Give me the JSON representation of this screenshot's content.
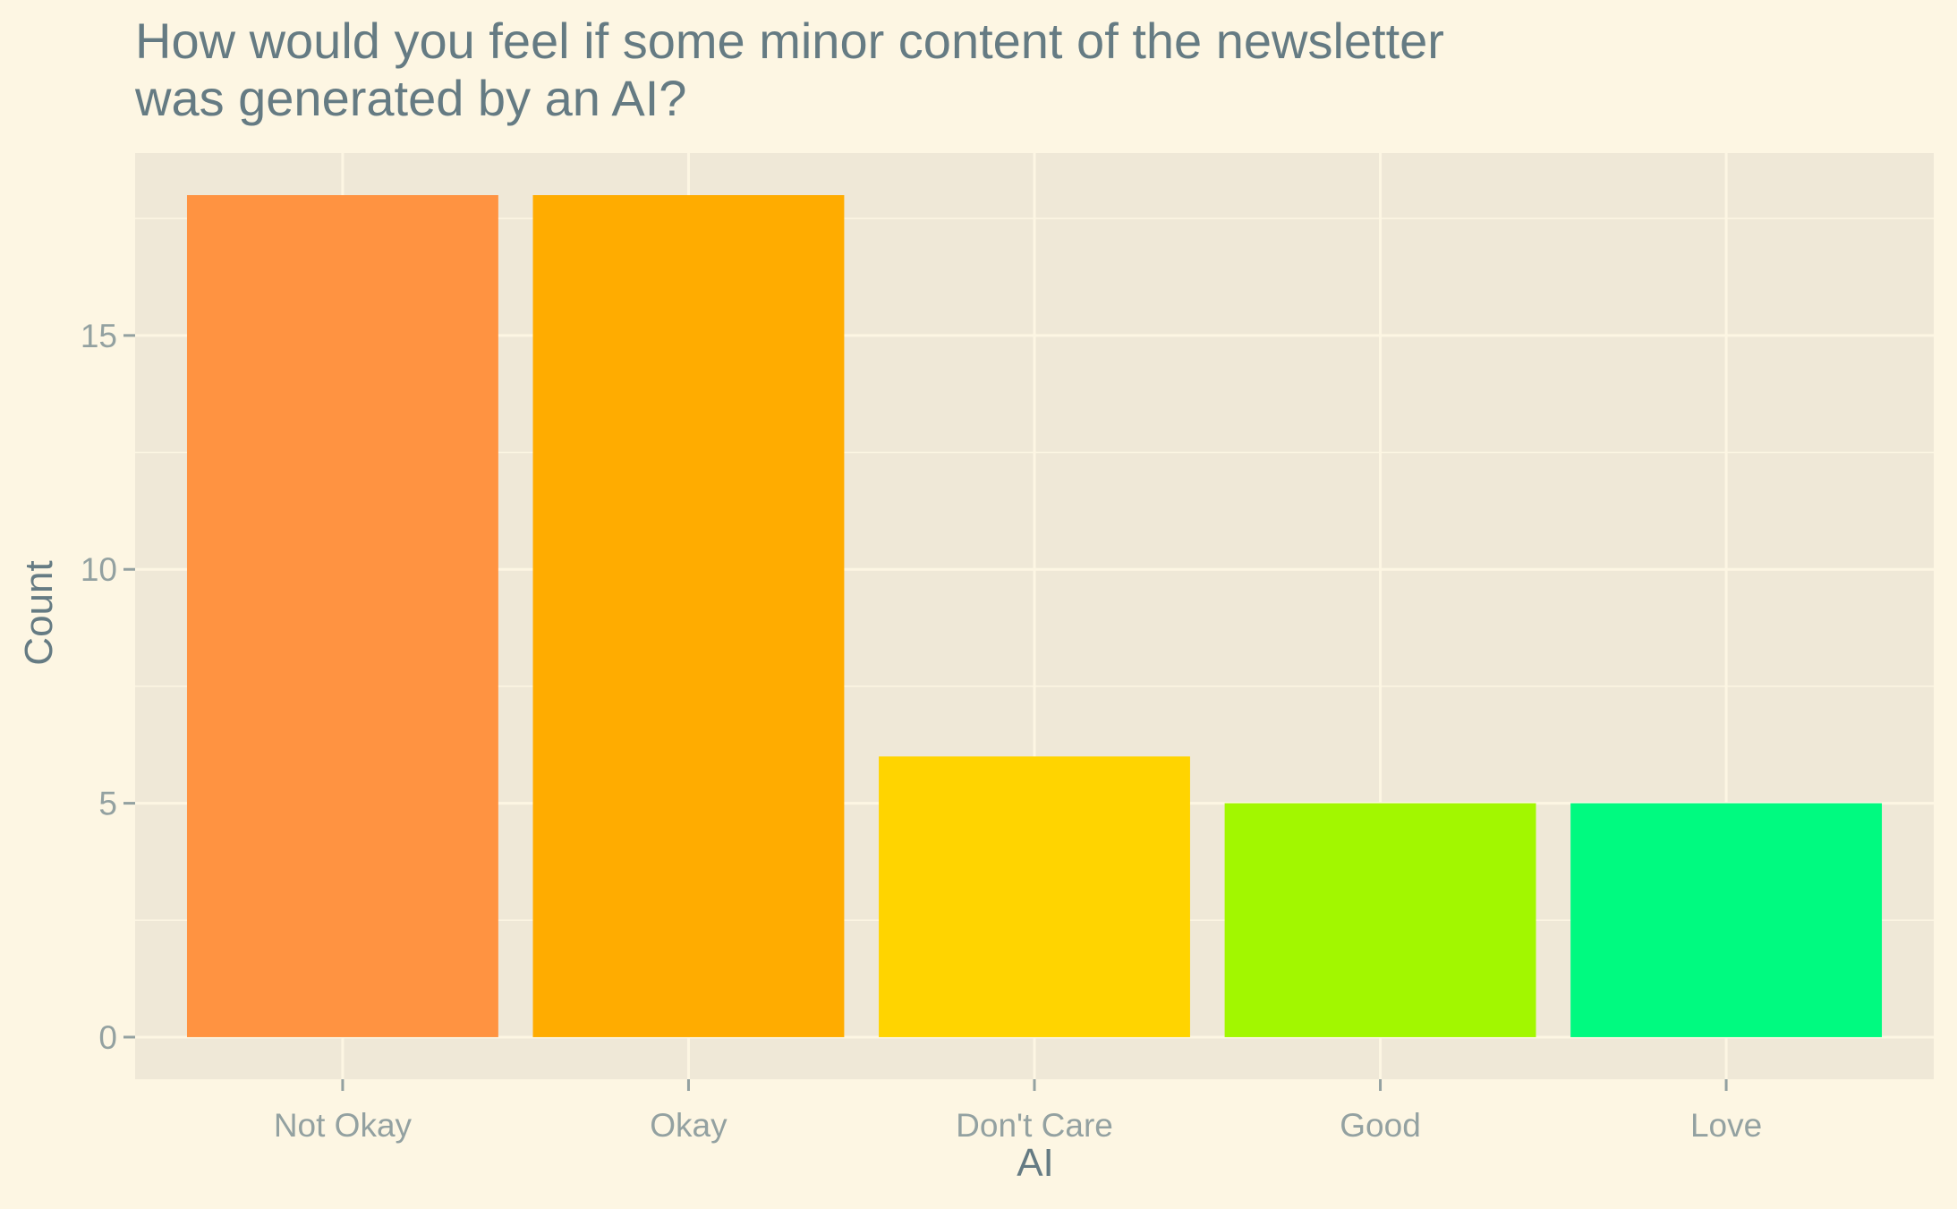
{
  "chart_data": {
    "type": "bar",
    "title_lines": [
      "How would you feel if some minor content of the newsletter",
      "was generated by an AI?"
    ],
    "xlabel": "AI",
    "ylabel": "Count",
    "categories": [
      "Not Okay",
      "Okay",
      "Don't Care",
      "Good",
      "Love"
    ],
    "values": [
      18,
      18,
      6,
      5,
      5
    ],
    "colors": [
      "#ff9341",
      "#ffac00",
      "#ffd400",
      "#a2f700",
      "#00fa80"
    ],
    "y_ticks": [
      0,
      5,
      10,
      15
    ],
    "ylim": [
      -0.9,
      18.9
    ],
    "grid": true,
    "legend": "none",
    "background": "#fdf6e3",
    "panel_background": "#efe8d7",
    "grid_color": "#fdf6e3"
  }
}
